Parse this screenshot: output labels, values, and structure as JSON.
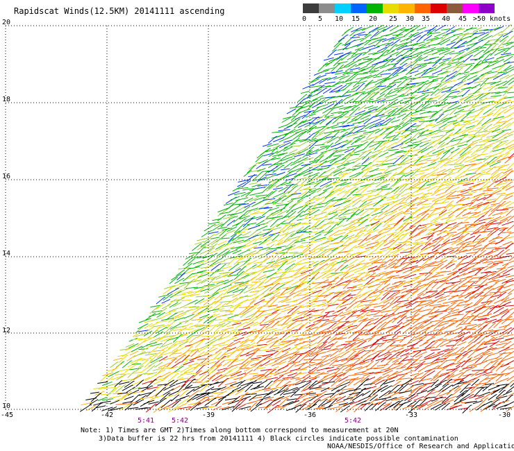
{
  "title": "Rapidscat Winds(12.5KM) 20141111 ascending",
  "legend": {
    "labels": [
      "0",
      "5",
      "10",
      "15",
      "20",
      "25",
      "30",
      "35",
      "40",
      "45",
      ">50 knots"
    ],
    "colors": [
      "#3c3c3c",
      "#8c8c8c",
      "#00d0ff",
      "#0064ff",
      "#00b400",
      "#e6dc00",
      "#ffb400",
      "#ff6400",
      "#dc0000",
      "#8c5a3c",
      "#ff00ff",
      "#8c00c8"
    ]
  },
  "y_axis": {
    "labels": [
      "20",
      "18",
      "16",
      "14",
      "12",
      "10"
    ]
  },
  "x_axis": {
    "labels": [
      "-45",
      "-42",
      "-39",
      "-36",
      "-33",
      "-30"
    ]
  },
  "time_labels": [
    "5:41",
    "5:42",
    "5:42"
  ],
  "notes": {
    "line1": "Note: 1) Times are GMT 2)Times along bottom correspond to measurement at 20N",
    "line2": "3)Data buffer is 22 hrs from 20141111 4) Black circles indicate possible contamination",
    "line3": "NOAA/NESDIS/Office of Research and Applications"
  }
}
